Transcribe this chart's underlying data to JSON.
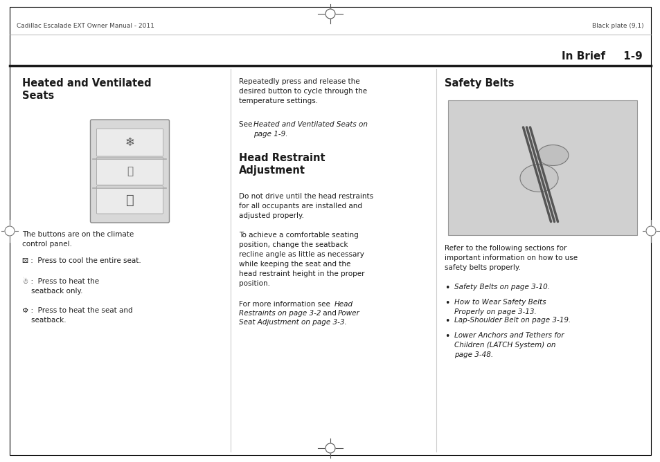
{
  "page_bg": "#ffffff",
  "border_color": "#000000",
  "header_left": "Cadillac Escalade EXT Owner Manual - 2011",
  "header_right": "Black plate (9,1)",
  "col1_title": "Heated and Ventilated\nSeats",
  "col3_title": "Safety Belts",
  "col2_head_title": "Head Restraint\nAdjustment",
  "col1_body1": "The buttons are on the climate\ncontrol panel.",
  "col2_body1": "Repeatedly press and release the\ndesired button to cycle through the\ntemperature settings.",
  "col2_body3": "Do not drive until the head restraints\nfor all occupants are installed and\nadjusted properly.",
  "col2_body4": "To achieve a comfortable seating\nposition, change the seatback\nrecline angle as little as necessary\nwhile keeping the seat and the\nhead restraint height in the proper\nposition.",
  "col3_body1": "Refer to the following sections for\nimportant information on how to use\nsafety belts properly.",
  "col3_bullet1": "Safety Belts on page 3-10.",
  "col3_bullet2": "How to Wear Safety Belts\nProperly on page 3-13.",
  "col3_bullet3": "Lap-Shoulder Belt on page 3-19.",
  "col3_bullet4": "Lower Anchors and Tethers for\nChildren (LATCH System) on\npage 3-48.",
  "text_color": "#1a1a1a",
  "title_color": "#1a1a1a",
  "section_title": "In Brief",
  "section_page": "1-9"
}
